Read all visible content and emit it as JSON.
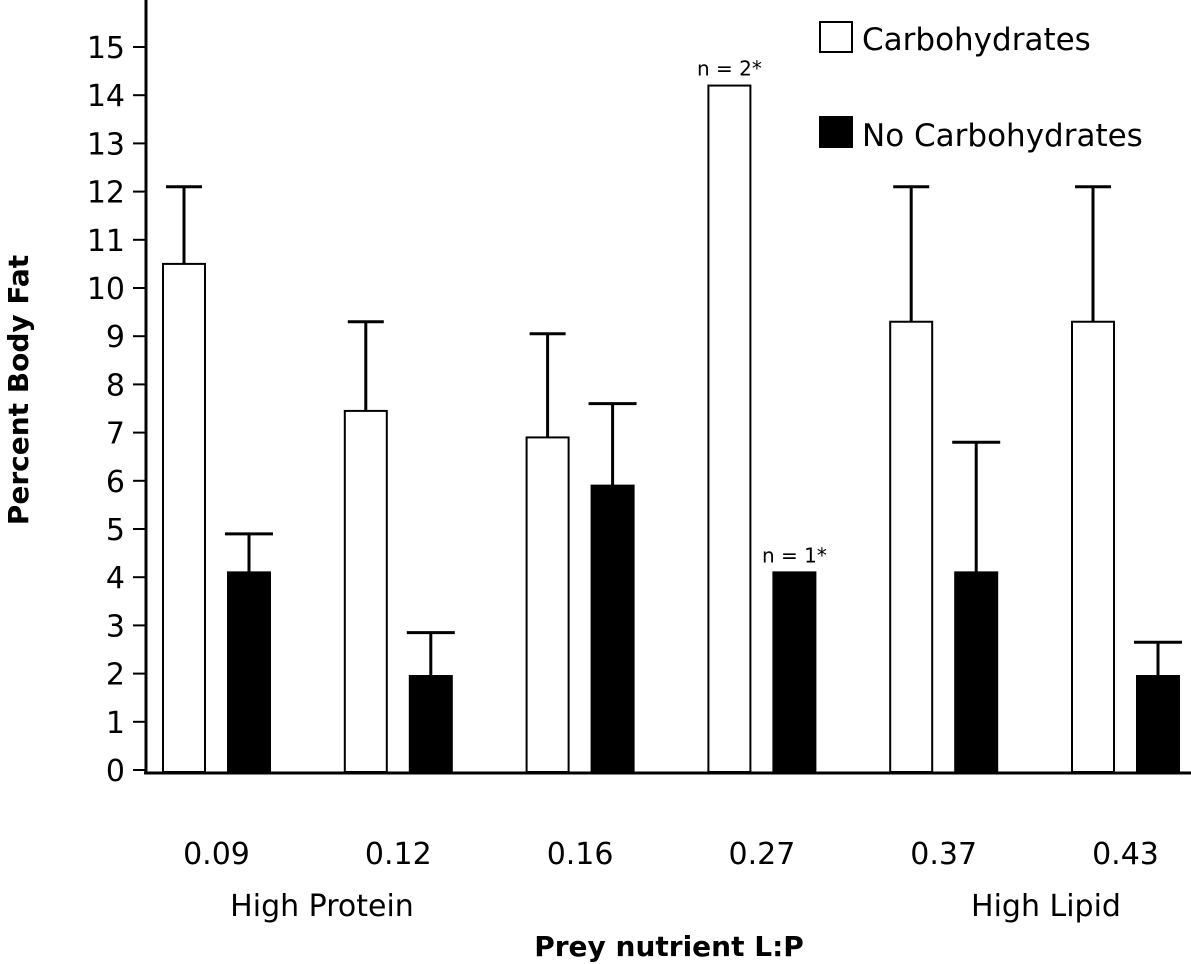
{
  "chart_data": {
    "type": "bar",
    "categories": [
      "0.09",
      "0.12",
      "0.16",
      "0.27",
      "0.37",
      "0.43"
    ],
    "series": [
      {
        "name": "Carbohydrates",
        "fill": "#ffffff",
        "values": [
          10.5,
          7.45,
          6.9,
          14.2,
          9.3,
          9.3
        ],
        "error": [
          1.6,
          1.85,
          2.15,
          null,
          2.8,
          2.8
        ]
      },
      {
        "name": "No Carbohydrates",
        "fill": "#000000",
        "values": [
          4.1,
          1.95,
          5.9,
          4.1,
          4.1,
          1.95
        ],
        "error": [
          0.8,
          0.9,
          1.7,
          null,
          2.7,
          0.7
        ]
      }
    ],
    "ylim": [
      0,
      15
    ],
    "yticks": [
      0,
      1,
      2,
      3,
      4,
      5,
      6,
      7,
      8,
      9,
      10,
      11,
      12,
      13,
      14,
      15
    ],
    "ylabel": "Percent Body Fat",
    "xlabel": "Prey nutrient L:P",
    "group_labels": [
      "High Protein",
      "High Lipid"
    ],
    "annotations": [
      {
        "text": "n = 2*",
        "category": "0.27",
        "series": "Carbohydrates"
      },
      {
        "text": "n = 1*",
        "category": "0.27",
        "series": "No Carbohydrates"
      }
    ],
    "legend_position": "top-right",
    "grid": false
  }
}
